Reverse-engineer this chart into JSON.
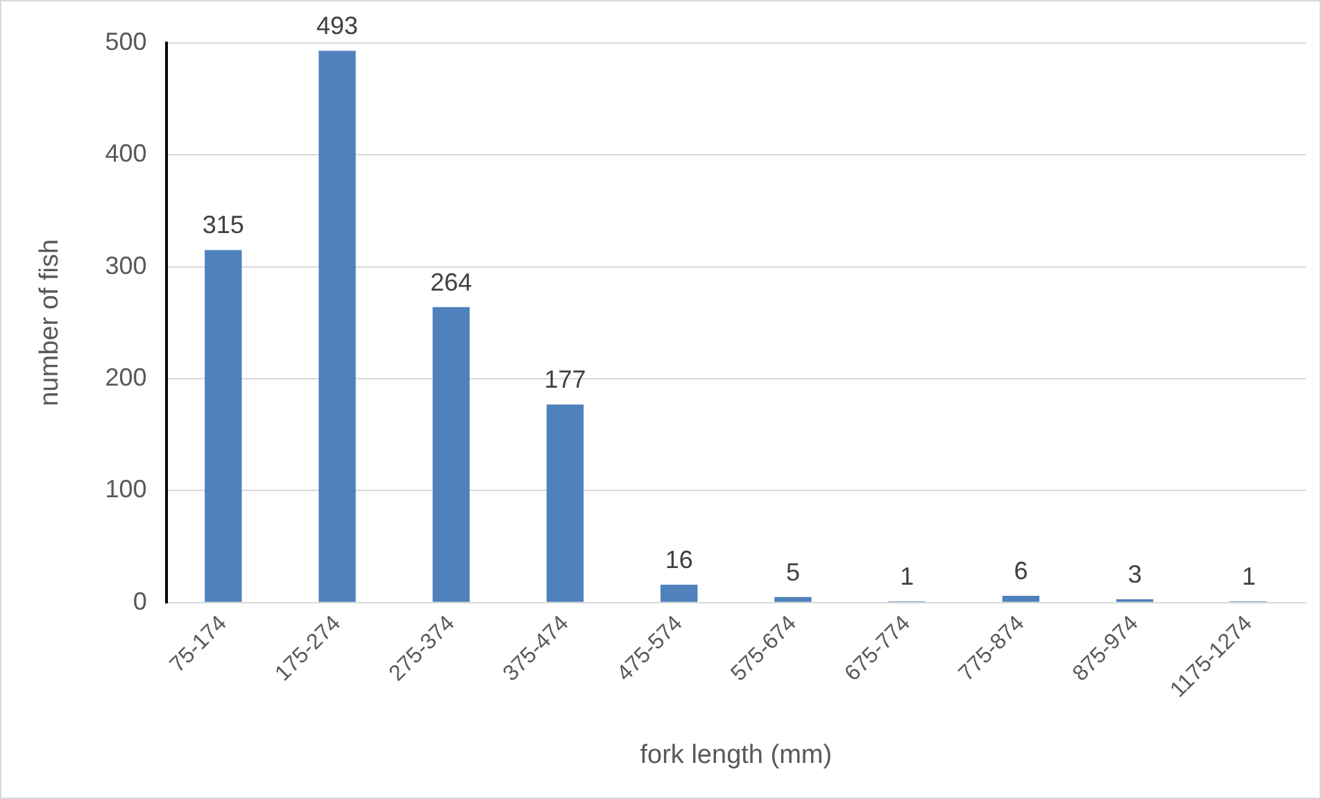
{
  "chart_data": {
    "type": "bar",
    "xlabel": "fork length (mm)",
    "ylabel": "number of fish",
    "categories": [
      "75-174",
      "175-274",
      "275-374",
      "375-474",
      "475-574",
      "575-674",
      "675-774",
      "775-874",
      "875-974",
      "1175-1274"
    ],
    "values": [
      315,
      493,
      264,
      177,
      16,
      5,
      1,
      6,
      3,
      1
    ],
    "color": "#4f81bd",
    "ylim": [
      0,
      500
    ],
    "yticks": [
      0,
      100,
      200,
      300,
      400,
      500
    ],
    "grid": "y",
    "legend": false,
    "data_labels": true
  }
}
